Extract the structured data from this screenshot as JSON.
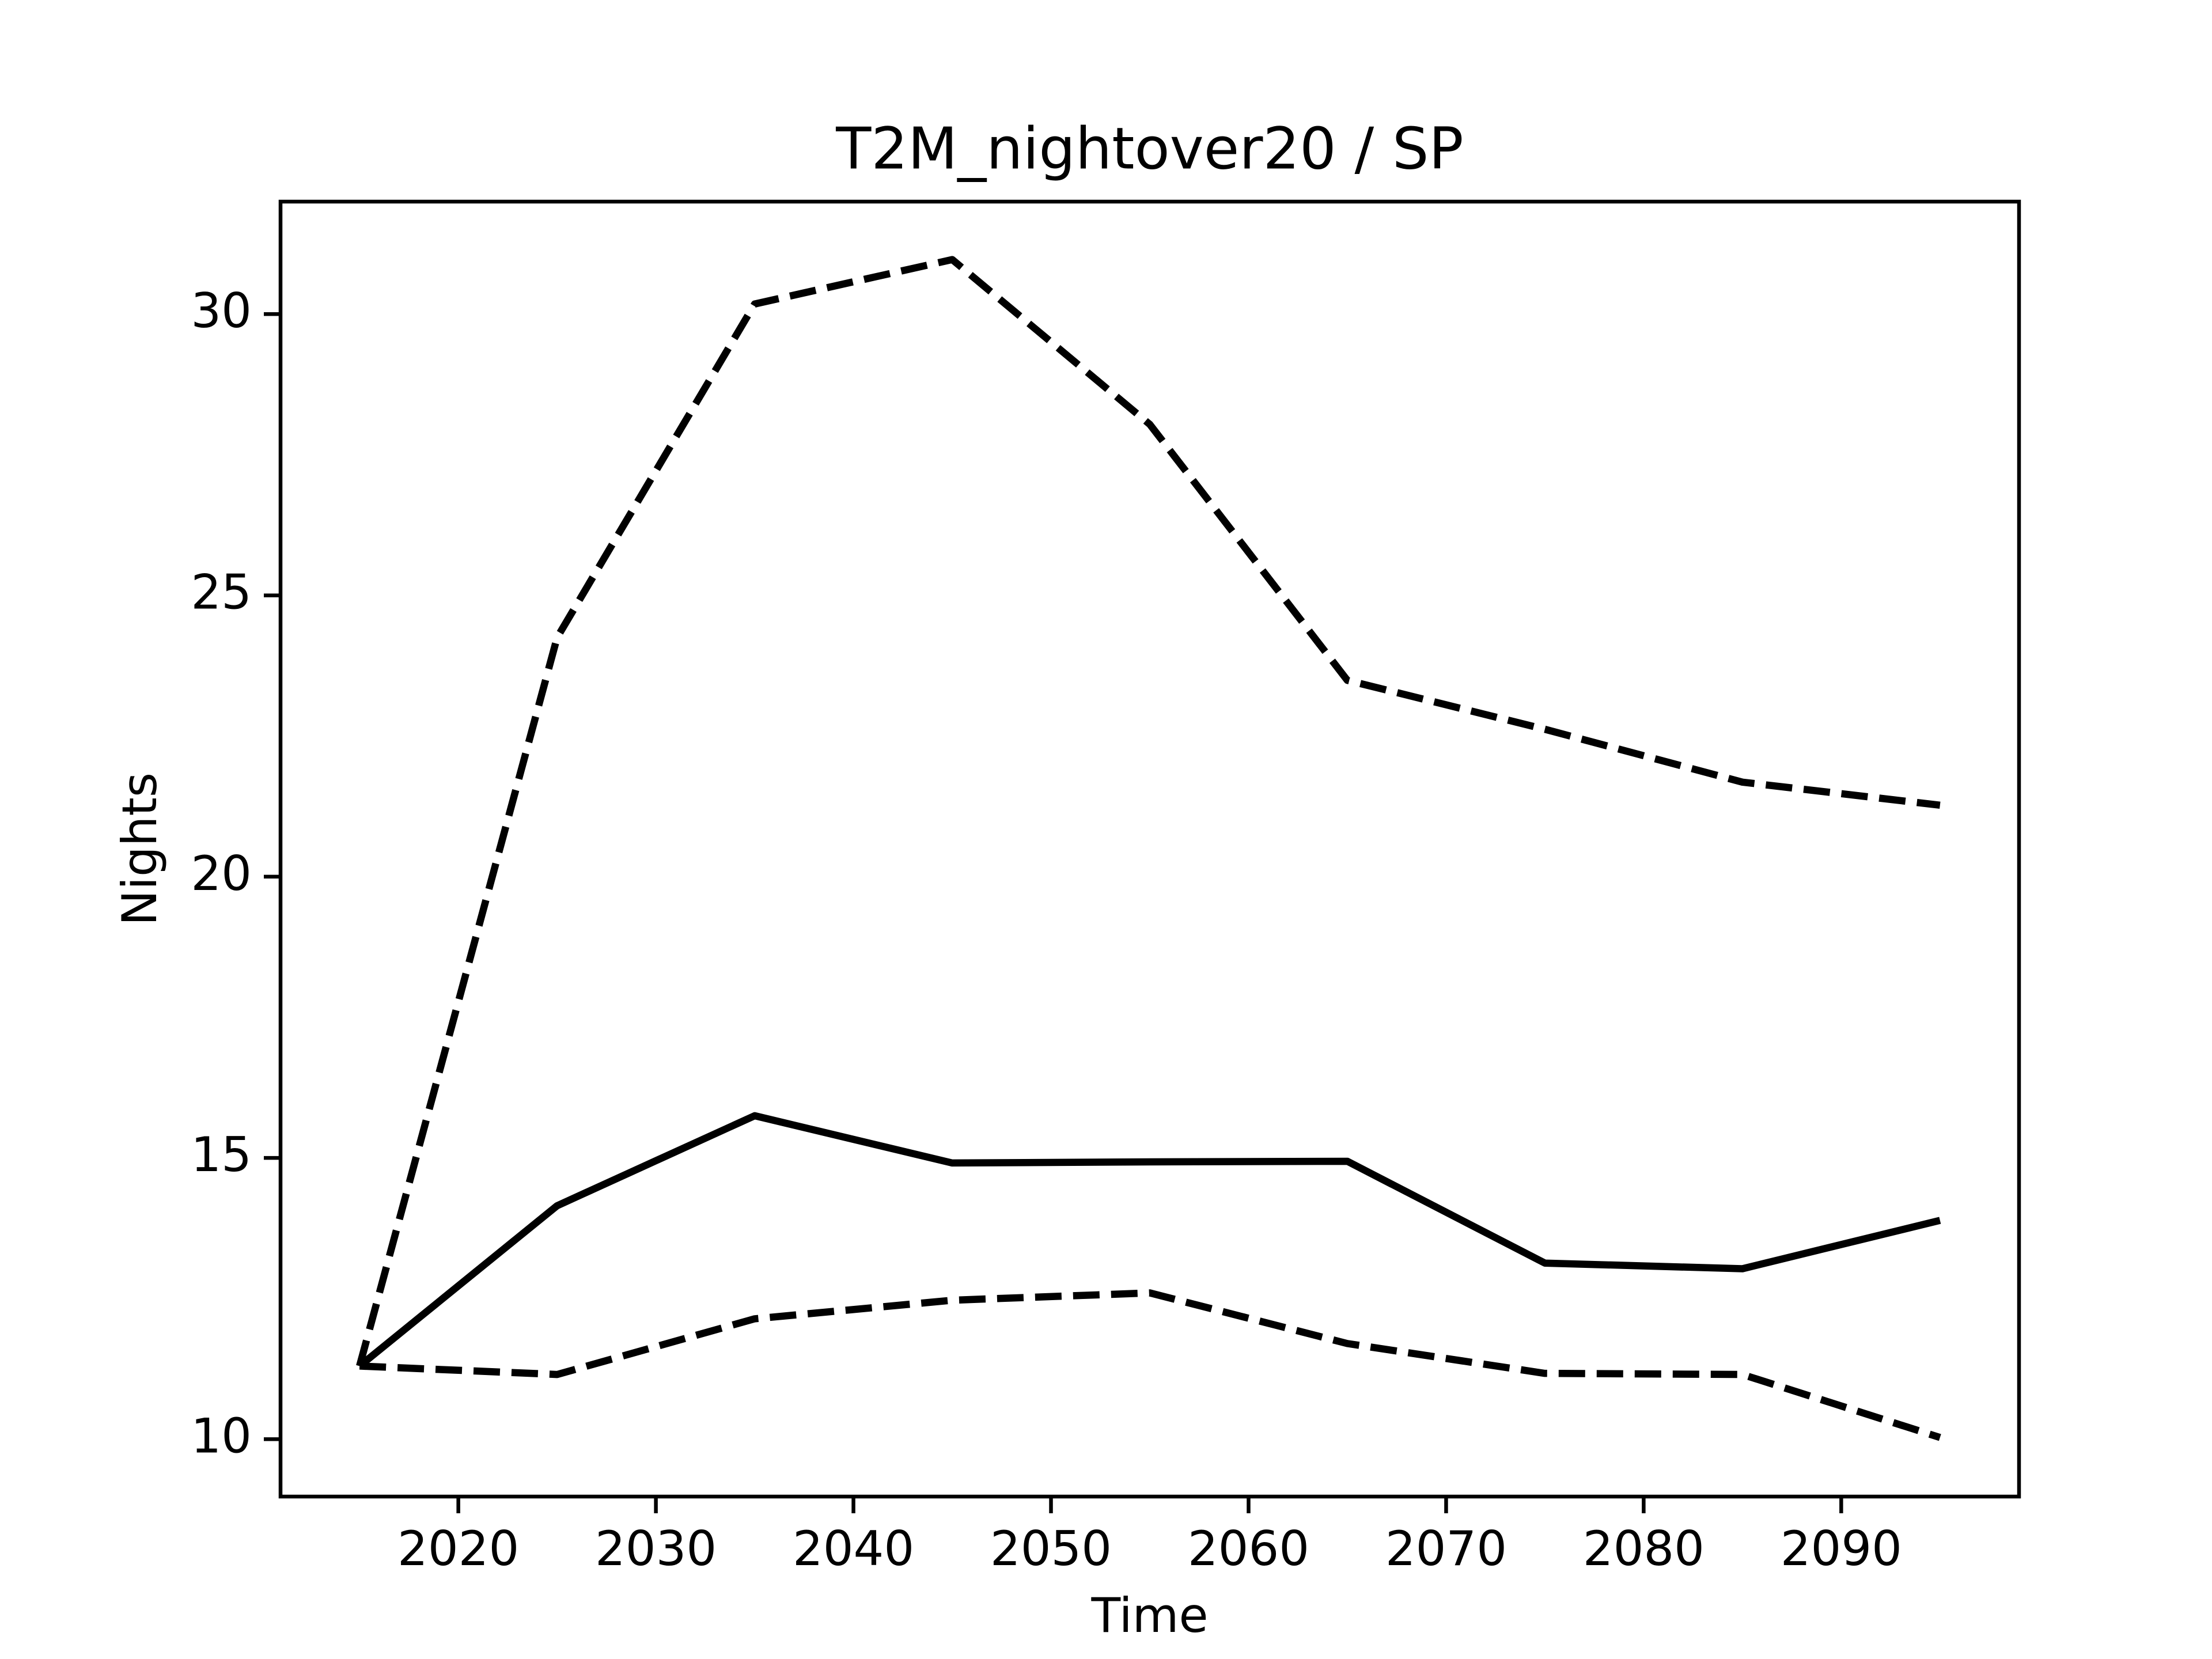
{
  "chart_data": {
    "type": "line",
    "title": "T2M_nightover20 / SP",
    "x_label": "Time",
    "y_label": "Nights",
    "x": [
      2015,
      2025,
      2035,
      2045,
      2055,
      2065,
      2075,
      2085,
      2095
    ],
    "series": [
      {
        "color": "#000000",
        "dashed": false,
        "values": [
          11.3,
          14.15,
          15.75,
          14.91,
          14.93,
          14.94,
          13.13,
          13.03,
          13.89
        ]
      },
      {
        "color": "#000000",
        "dashed": true,
        "values": [
          11.3,
          24.25,
          30.18,
          30.97,
          28.04,
          23.49,
          22.62,
          21.68,
          21.27
        ]
      },
      {
        "color": "#000000",
        "dashed": true,
        "values": [
          11.3,
          11.15,
          12.14,
          12.47,
          12.6,
          11.7,
          11.17,
          11.15,
          10.03
        ]
      }
    ],
    "xlim": [
      2011,
      2099
    ],
    "xticks": [
      2020,
      2030,
      2040,
      2050,
      2060,
      2070,
      2080,
      2090
    ],
    "ylim": [
      8.98,
      32.0
    ],
    "yticks": [
      10,
      15,
      20,
      25,
      30
    ],
    "grid": false
  }
}
